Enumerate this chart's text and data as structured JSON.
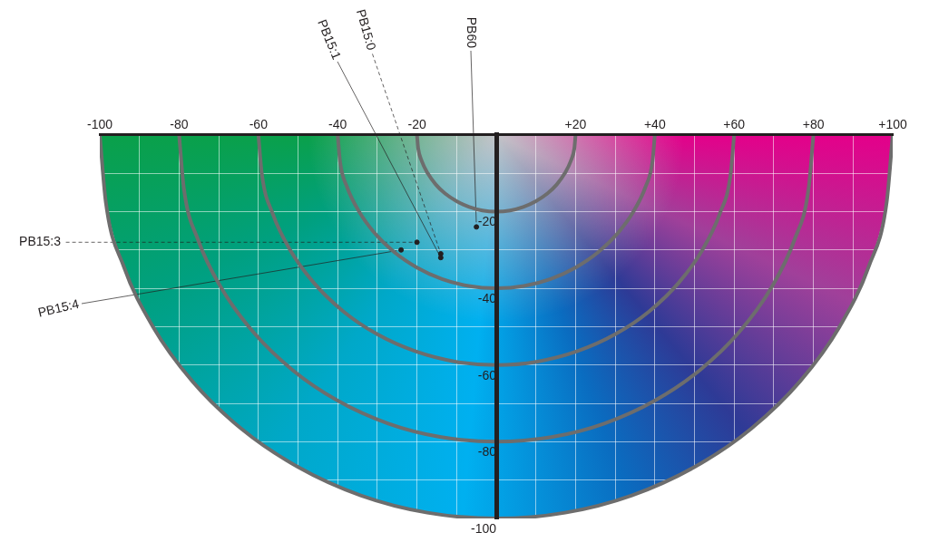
{
  "chart_data": {
    "type": "scatter",
    "xlim": [
      -100,
      100
    ],
    "xticks": [
      {
        "value": -100,
        "label": "-100"
      },
      {
        "value": -90,
        "label": null
      },
      {
        "value": -80,
        "label": "-80"
      },
      {
        "value": -70,
        "label": null
      },
      {
        "value": -60,
        "label": "-60"
      },
      {
        "value": -50,
        "label": null
      },
      {
        "value": -40,
        "label": "-40"
      },
      {
        "value": -30,
        "label": null
      },
      {
        "value": -20,
        "label": "-20"
      },
      {
        "value": -10,
        "label": null
      },
      {
        "value": 0,
        "label": null
      },
      {
        "value": 10,
        "label": null
      },
      {
        "value": 20,
        "label": "+20"
      },
      {
        "value": 30,
        "label": null
      },
      {
        "value": 40,
        "label": "+40"
      },
      {
        "value": 50,
        "label": null
      },
      {
        "value": 60,
        "label": "+60"
      },
      {
        "value": 70,
        "label": null
      },
      {
        "value": 80,
        "label": "+80"
      },
      {
        "value": 90,
        "label": null
      },
      {
        "value": 100,
        "label": "+100"
      }
    ],
    "ylim": [
      -100,
      0
    ],
    "yticks": [
      {
        "value": -100,
        "label": "-100"
      },
      {
        "value": -90,
        "label": null
      },
      {
        "value": -80,
        "label": "-80"
      },
      {
        "value": -70,
        "label": null
      },
      {
        "value": -60,
        "label": "-60"
      },
      {
        "value": -50,
        "label": null
      },
      {
        "value": -40,
        "label": "-40"
      },
      {
        "value": -30,
        "label": null
      },
      {
        "value": -20,
        "label": "-20"
      },
      {
        "value": -10,
        "label": null
      },
      {
        "value": 0,
        "label": null
      }
    ],
    "grid": true,
    "legend": false,
    "series": [
      {
        "type": "line",
        "color": "#6d6d6d",
        "x": [
          -20,
          -19.7,
          -18.8,
          -17.3,
          -15.3,
          -12.9,
          -10,
          -6.8,
          -3.5,
          0,
          3.5,
          6.8,
          10,
          12.9,
          15.3,
          17.3,
          18.8,
          19.7,
          20
        ],
        "values": [
          0,
          -3.5,
          -6.8,
          -10,
          -12.9,
          -15.3,
          -17.3,
          -18.8,
          -19.7,
          -20,
          -19.7,
          -18.8,
          -17.3,
          -15.3,
          -12.9,
          -10,
          -6.8,
          -3.5,
          0
        ]
      },
      {
        "type": "line",
        "color": "#6d6d6d",
        "x": [
          -40,
          -39.4,
          -37.6,
          -34.6,
          -30.6,
          -25.7,
          -20,
          -13.7,
          -7,
          0,
          7,
          13.7,
          20,
          25.7,
          30.6,
          34.6,
          37.6,
          39.4,
          40
        ],
        "values": [
          0,
          -7,
          -13.7,
          -20,
          -25.7,
          -30.6,
          -34.6,
          -37.6,
          -39.4,
          -40,
          -39.4,
          -37.6,
          -34.6,
          -30.6,
          -25.7,
          -20,
          -13.7,
          -7,
          0
        ]
      },
      {
        "type": "line",
        "color": "#6d6d6d",
        "x": [
          -60,
          -59.1,
          -56.4,
          -52,
          -46,
          -38.6,
          -30,
          -20.5,
          -10.4,
          0,
          10.4,
          20.5,
          30,
          38.6,
          46,
          52,
          56.4,
          59.1,
          60
        ],
        "values": [
          0,
          -10.4,
          -20.5,
          -30,
          -38.6,
          -46,
          -52,
          -56.4,
          -59.1,
          -60,
          -59.1,
          -56.4,
          -52,
          -46,
          -38.6,
          -30,
          -20.5,
          -10.4,
          0
        ]
      },
      {
        "type": "line",
        "color": "#6d6d6d",
        "x": [
          -80,
          -78.8,
          -75.2,
          -69.3,
          -61.3,
          -51.4,
          -40,
          -27.4,
          -13.9,
          0,
          13.9,
          27.4,
          40,
          51.4,
          61.3,
          69.3,
          75.2,
          78.8,
          80
        ],
        "values": [
          0,
          -13.9,
          -27.4,
          -40,
          -51.4,
          -61.3,
          -69.3,
          -75.2,
          -78.8,
          -80,
          -78.8,
          -75.2,
          -69.3,
          -61.3,
          -51.4,
          -40,
          -27.4,
          -13.9,
          0
        ]
      },
      {
        "type": "line",
        "color": "#6d6d6d",
        "x": [
          -100,
          -98.5,
          -94,
          -86.6,
          -76.6,
          -64.3,
          -50,
          -34.2,
          -17.4,
          0,
          17.4,
          34.2,
          50,
          64.3,
          76.6,
          86.6,
          94,
          98.5,
          100
        ],
        "values": [
          0,
          -17.4,
          -34.2,
          -50,
          -64.3,
          -76.6,
          -86.6,
          -94,
          -98.5,
          -100,
          -98.5,
          -94,
          -86.6,
          -76.6,
          -64.3,
          -50,
          -34.2,
          -17.4,
          0
        ]
      },
      {
        "marker": "circle",
        "color": "#231f20",
        "x": [
          -14,
          -14,
          -20,
          -24,
          -5
        ],
        "values": [
          -31,
          -32,
          -28,
          -30,
          -24
        ]
      }
    ],
    "annotations": [
      {
        "text": "PB15:0",
        "x": -14,
        "y": -31
      },
      {
        "text": "PB15:1",
        "x": -14,
        "y": -32
      },
      {
        "text": "PB15:3",
        "x": -20,
        "y": -28
      },
      {
        "text": "PB15:4",
        "x": -24,
        "y": -30
      },
      {
        "text": "PB60",
        "x": -5,
        "y": -24
      }
    ]
  }
}
